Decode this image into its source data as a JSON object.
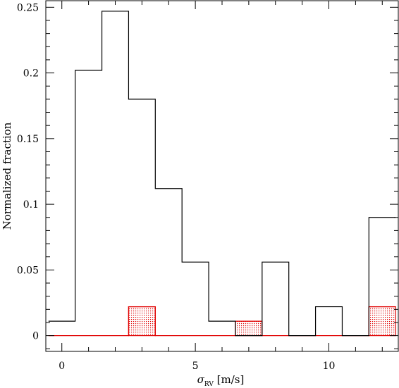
{
  "chart_data": {
    "type": "bar",
    "xlabel": "σ",
    "xlabel_subscript": "RV",
    "xlabel_unit": " [m/s]",
    "ylabel": "Normalized fraction",
    "xlim": [
      -0.6,
      12.6
    ],
    "ylim": [
      -0.012,
      0.255
    ],
    "xticks": [
      0,
      5,
      10
    ],
    "xtick_labels": [
      "0",
      "5",
      "10"
    ],
    "yticks": [
      0,
      0.05,
      0.1,
      0.15,
      0.2,
      0.25
    ],
    "ytick_labels": [
      "0",
      "0.05",
      "0.1",
      "0.15",
      "0.2",
      "0.25"
    ],
    "bin_edges": [
      -0.5,
      0.5,
      1.5,
      2.5,
      3.5,
      4.5,
      5.5,
      6.5,
      7.5,
      8.5,
      9.5,
      10.5,
      11.5,
      12.5
    ],
    "series": [
      {
        "style": "step",
        "color": "#000000",
        "values": [
          0.011,
          0.202,
          0.247,
          0.18,
          0.112,
          0.056,
          0.011,
          0.0,
          0.056,
          0.0,
          0.022,
          0.0,
          0.09
        ]
      },
      {
        "style": "hatched",
        "color": "#e00000",
        "values": [
          0.0,
          0.0,
          0.0,
          0.022,
          0.0,
          0.0,
          0.0,
          0.011,
          0.0,
          0.0,
          0.0,
          0.0,
          0.022
        ]
      }
    ]
  }
}
